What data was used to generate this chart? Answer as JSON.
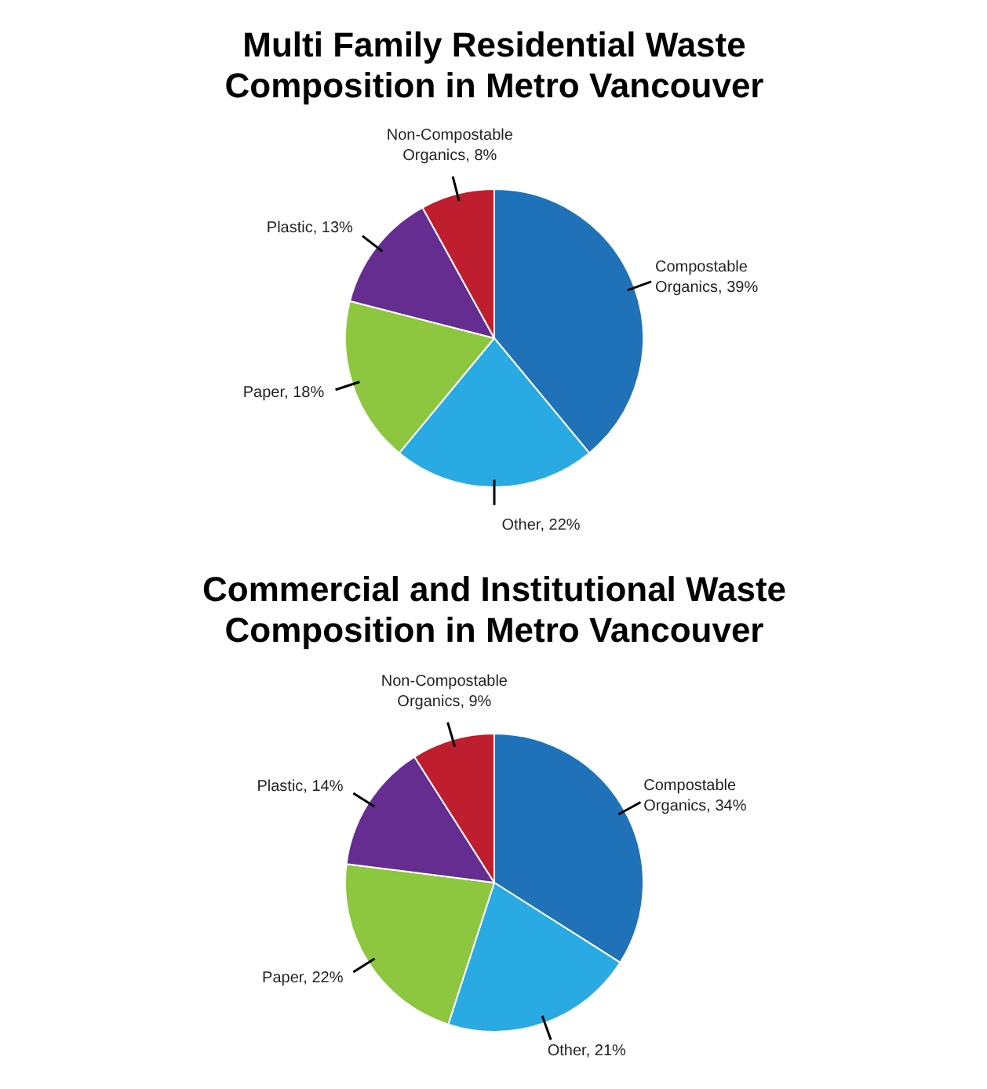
{
  "chart_data": [
    {
      "type": "pie",
      "title": "Multi Family Residential Waste\nComposition in Metro Vancouver",
      "categories": [
        "Compostable Organics",
        "Other",
        "Paper",
        "Plastic",
        "Non-Compostable Organics"
      ],
      "values": [
        39,
        22,
        18,
        13,
        8
      ],
      "value_labels": [
        "39%",
        "22%",
        "18%",
        "13%",
        "8%"
      ],
      "colors": [
        "#1f72b8",
        "#29aae2",
        "#8dc63f",
        "#662d91",
        "#be1e2d"
      ]
    },
    {
      "type": "pie",
      "title": "Commercial and Institutional Waste\nComposition in Metro Vancouver",
      "categories": [
        "Compostable Organics",
        "Other",
        "Paper",
        "Plastic",
        "Non-Compostable Organics"
      ],
      "values": [
        34,
        21,
        22,
        14,
        9
      ],
      "value_labels": [
        "34%",
        "21%",
        "22%",
        "14%",
        "9%"
      ],
      "colors": [
        "#1f72b8",
        "#29aae2",
        "#8dc63f",
        "#662d91",
        "#be1e2d"
      ]
    }
  ]
}
